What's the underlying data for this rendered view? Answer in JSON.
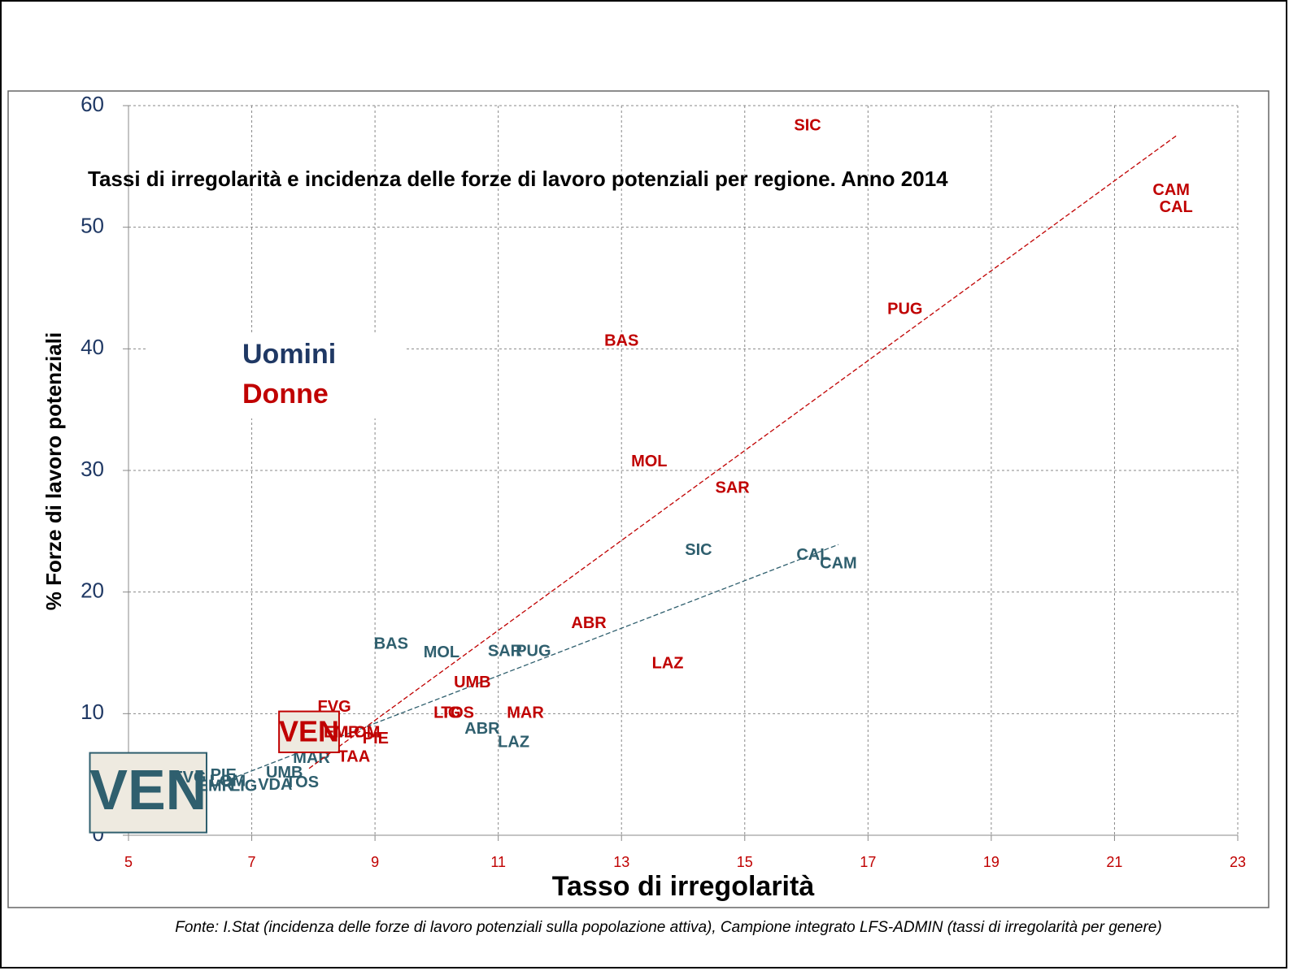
{
  "chart_data": {
    "type": "scatter",
    "title": "Tassi di irregolarità e incidenza delle forze di lavoro potenziali per regione. Anno 2014",
    "x_label": "Tasso di irregolarità",
    "y_label": "% Forze di lavoro potenziali",
    "source": "Fonte: I.Stat (incidenza delle forze di lavoro potenziali sulla popolazione attiva), Campione integrato LFS-ADMIN (tassi di irregolarità per genere)",
    "xlim": [
      5,
      23
    ],
    "xticks": [
      5,
      7,
      9,
      11,
      13,
      15,
      17,
      19,
      21,
      23
    ],
    "ylim": [
      0,
      60
    ],
    "yticks": [
      0,
      10,
      20,
      30,
      40,
      50,
      60
    ],
    "grid": true,
    "trendline": true,
    "series": [
      {
        "name": "Uomini",
        "color": "#2f5f6e",
        "labels": [
          "SIC",
          "CAL",
          "CAM",
          "BAS",
          "MOL",
          "SAR",
          "PUG",
          "ABR",
          "LAZ",
          "UMB",
          "TOS",
          "MAR",
          "VDA",
          "FVG",
          "PIE",
          "LOM",
          "EMR",
          "LIG"
        ],
        "x": [
          14.25,
          16.11,
          16.52,
          9.26,
          10.08,
          11.11,
          11.57,
          10.74,
          11.25,
          7.53,
          7.82,
          7.97,
          7.38,
          5.99,
          6.54,
          6.61,
          6.41,
          6.87
        ],
        "y": [
          23.4,
          23.0,
          22.3,
          15.7,
          15.0,
          15.1,
          15.1,
          8.7,
          7.6,
          5.1,
          4.3,
          6.3,
          4.1,
          4.7,
          4.9,
          4.4,
          4.0,
          4.0
        ],
        "highlight": {
          "label": "VEN",
          "x": 5.32,
          "y": 3.5
        }
      },
      {
        "name": "Donne",
        "color": "#c00000",
        "labels": [
          "SIC",
          "CAM",
          "CAL",
          "PUG",
          "BAS",
          "MOL",
          "SAR",
          "ABR",
          "LAZ",
          "UMB",
          "MAR",
          "TOS",
          "LIG",
          "FVG",
          "EMR",
          "LOM",
          "PIE",
          "TAA"
        ],
        "x": [
          16.02,
          21.92,
          22.0,
          17.6,
          13.0,
          13.45,
          14.8,
          12.47,
          13.75,
          10.58,
          11.44,
          10.34,
          10.17,
          8.34,
          8.46,
          8.79,
          9.01,
          8.66
        ],
        "y": [
          58.3,
          53.0,
          51.6,
          43.2,
          40.6,
          30.7,
          28.5,
          17.4,
          14.1,
          12.5,
          10.0,
          10.0,
          10.0,
          10.5,
          8.4,
          8.4,
          7.9,
          6.4
        ],
        "highlight": {
          "label": "VEN",
          "x": 7.93,
          "y": 8.5
        }
      }
    ]
  }
}
